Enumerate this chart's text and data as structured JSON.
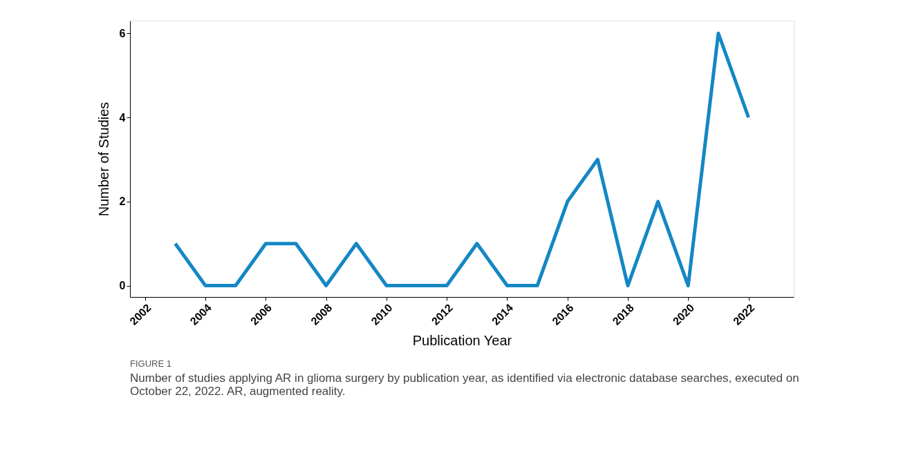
{
  "chart_data": {
    "type": "line",
    "xlabel": "Publication Year",
    "ylabel": "Number of Studies",
    "x": [
      2003,
      2004,
      2005,
      2006,
      2007,
      2008,
      2009,
      2010,
      2011,
      2012,
      2013,
      2014,
      2015,
      2016,
      2017,
      2018,
      2019,
      2020,
      2021,
      2022
    ],
    "series": [
      {
        "color": "#1487c4",
        "values": [
          1,
          0,
          0,
          1,
          1,
          0,
          1,
          0,
          0,
          0,
          1,
          0,
          0,
          2,
          3,
          0,
          2,
          0,
          6,
          4
        ]
      }
    ],
    "xlim": [
      2001.5,
      2023.5
    ],
    "xticks": [
      2002,
      2004,
      2006,
      2008,
      2010,
      2012,
      2014,
      2016,
      2018,
      2020,
      2022
    ],
    "ylim": [
      -0.27,
      6.3
    ],
    "yticks": [
      0,
      2,
      4,
      6
    ],
    "grid": false,
    "marker": "none",
    "line_style": "solid",
    "annotations": [
      "FIGURE 1",
      "Number of studies applying AR in glioma surgery by publication year, as identified via electronic database searches, executed on October 22, 2022. AR, augmented reality."
    ]
  }
}
